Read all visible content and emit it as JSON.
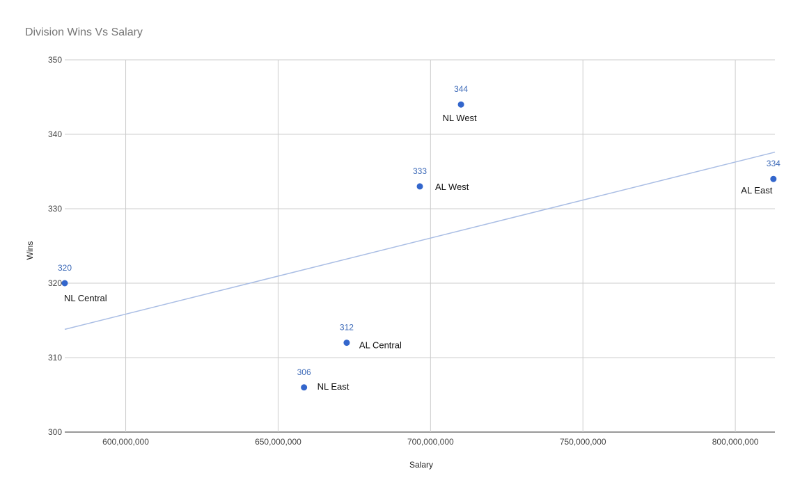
{
  "chart_data": {
    "type": "scatter",
    "title": "Division Wins Vs Salary",
    "xlabel": "Salary",
    "ylabel": "Wins",
    "xlim": [
      580000000,
      813000000
    ],
    "ylim": [
      300,
      350
    ],
    "x_ticks": [
      600000000,
      650000000,
      700000000,
      750000000,
      800000000
    ],
    "x_tick_labels": [
      "600,000,000",
      "650,000,000",
      "700,000,000",
      "750,000,000",
      "800,000,000"
    ],
    "y_ticks": [
      300,
      310,
      320,
      330,
      340,
      350
    ],
    "y_tick_labels": [
      "300",
      "310",
      "320",
      "330",
      "340",
      "350"
    ],
    "grid": true,
    "legend": "none",
    "point_color": "#3366cc",
    "trendline_color": "#a9bde4",
    "trendline": {
      "type": "linear",
      "points": [
        [
          580000000,
          313.8
        ],
        [
          813000000,
          337.6
        ]
      ]
    },
    "points": [
      {
        "name": "NL West",
        "x": 710000000,
        "y": 344,
        "value_label": "344"
      },
      {
        "name": "AL West",
        "x": 696500000,
        "y": 333,
        "value_label": "333"
      },
      {
        "name": "AL East",
        "x": 812500000,
        "y": 334,
        "value_label": "334"
      },
      {
        "name": "NL Central",
        "x": 580000000,
        "y": 320,
        "value_label": "320"
      },
      {
        "name": "AL Central",
        "x": 672500000,
        "y": 312,
        "value_label": "312"
      },
      {
        "name": "NL East",
        "x": 658500000,
        "y": 306,
        "value_label": "306"
      }
    ]
  }
}
